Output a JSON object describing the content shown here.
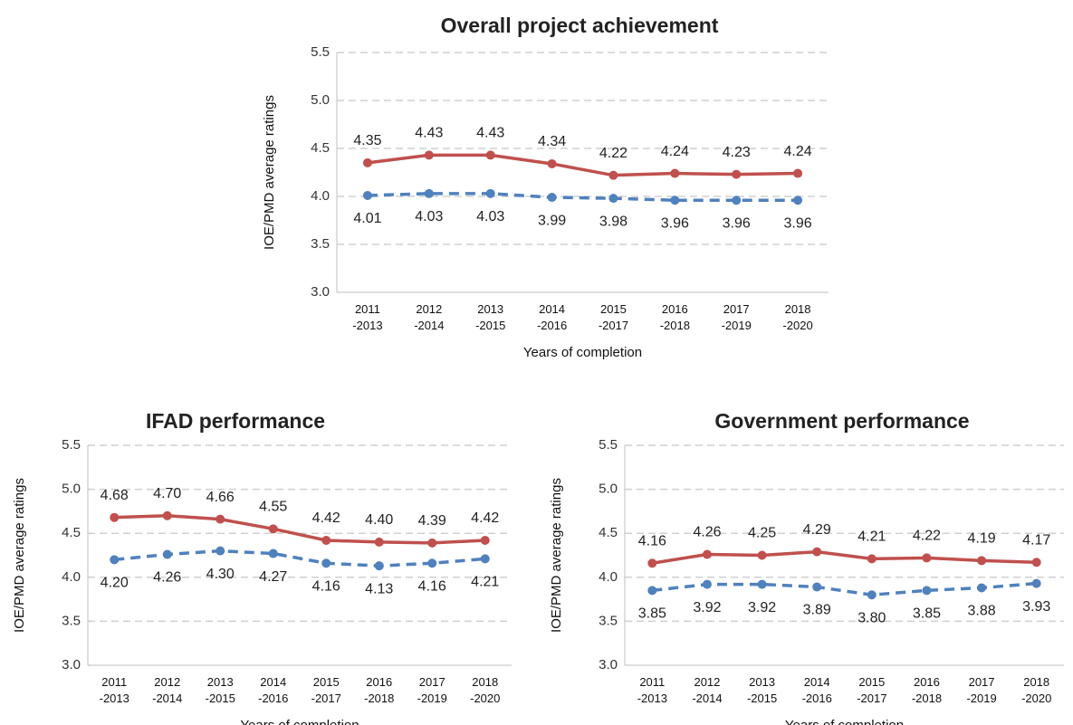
{
  "chart_data": [
    {
      "type": "line",
      "title": "Overall project achievement",
      "y_label": "IOE/PMD average ratings",
      "x_label": "Years of completion",
      "categories": [
        "2011\n-2013",
        "2012\n-2014",
        "2013\n-2015",
        "2014\n-2016",
        "2015\n-2017",
        "2016\n-2018",
        "2017\n-2019",
        "2018\n-2020"
      ],
      "ylim": [
        3,
        5.5
      ],
      "yticks": [
        {
          "value": 3,
          "label": "3.0"
        },
        3.5,
        {
          "value": 4,
          "label": "4.0"
        },
        4.5,
        {
          "value": 5,
          "label": "5.0"
        },
        5.5
      ],
      "grid": true,
      "series": [
        {
          "color": "#c0504d",
          "style": "solid",
          "values": [
            4.35,
            4.43,
            4.43,
            4.34,
            4.22,
            4.24,
            4.23,
            4.24
          ],
          "value_labels": [
            "4.35",
            "4.43",
            "4.43",
            "4.34",
            "4.22",
            "4.24",
            "4.23",
            "4.24"
          ]
        },
        {
          "color": "#4f81bd",
          "style": "dashed",
          "values": [
            4.01,
            4.03,
            4.03,
            3.99,
            3.98,
            3.96,
            3.96,
            3.96
          ],
          "value_labels": [
            "4.01",
            "4.03",
            "4.03",
            "3.99",
            "3.98",
            "3.96",
            "3.96",
            "3.96"
          ]
        }
      ]
    },
    {
      "type": "line",
      "title": "IFAD performance",
      "y_label": "IOE/PMD average ratings",
      "x_label": "Years of completion",
      "categories": [
        "2011\n-2013",
        "2012\n-2014",
        "2013\n-2015",
        "2014\n-2016",
        "2015\n-2017",
        "2016\n-2018",
        "2017\n-2019",
        "2018\n-2020"
      ],
      "ylim": [
        3,
        5.5
      ],
      "yticks": [
        {
          "value": 3,
          "label": "3.0"
        },
        3.5,
        {
          "value": 4,
          "label": "4.0"
        },
        4.5,
        {
          "value": 5,
          "label": "5.0"
        },
        5.5
      ],
      "grid": true,
      "series": [
        {
          "color": "#c0504d",
          "style": "solid",
          "values": [
            4.68,
            4.7,
            4.66,
            4.55,
            4.42,
            4.4,
            4.39,
            4.42
          ],
          "value_labels": [
            "4.68",
            "4.70",
            "4.66",
            "4.55",
            "4.42",
            "4.40",
            "4.39",
            "4.42"
          ]
        },
        {
          "color": "#4f81bd",
          "style": "dashed",
          "values": [
            4.2,
            4.26,
            4.3,
            4.27,
            4.16,
            4.13,
            4.16,
            4.21
          ],
          "value_labels": [
            "4.20",
            "4.26",
            "4.30",
            "4.27",
            "4.16",
            "4.13",
            "4.16",
            "4.21"
          ]
        }
      ]
    },
    {
      "type": "line",
      "title": "Government performance",
      "y_label": "IOE/PMD average ratings",
      "x_label": "Years of completion",
      "categories": [
        "2011\n-2013",
        "2012\n-2014",
        "2013\n-2015",
        "2014\n-2016",
        "2015\n-2017",
        "2016\n-2018",
        "2017\n-2019",
        "2018\n-2020"
      ],
      "ylim": [
        3,
        5.5
      ],
      "yticks": [
        {
          "value": 3,
          "label": "3.0"
        },
        3.5,
        {
          "value": 4,
          "label": "4.0"
        },
        4.5,
        {
          "value": 5,
          "label": "5.0"
        },
        5.5
      ],
      "grid": true,
      "series": [
        {
          "color": "#c0504d",
          "style": "solid",
          "values": [
            4.16,
            4.26,
            4.25,
            4.29,
            4.21,
            4.22,
            4.19,
            4.17
          ],
          "value_labels": [
            "4.16",
            "4.26",
            "4.25",
            "4.29",
            "4.21",
            "4.22",
            "4.19",
            "4.17"
          ]
        },
        {
          "color": "#4f81bd",
          "style": "dashed",
          "values": [
            3.85,
            3.92,
            3.92,
            3.89,
            3.8,
            3.85,
            3.88,
            3.93
          ],
          "value_labels": [
            "3.85",
            "3.92",
            "3.92",
            "3.89",
            "3.80",
            "3.85",
            "3.88",
            "3.93"
          ]
        }
      ]
    }
  ]
}
